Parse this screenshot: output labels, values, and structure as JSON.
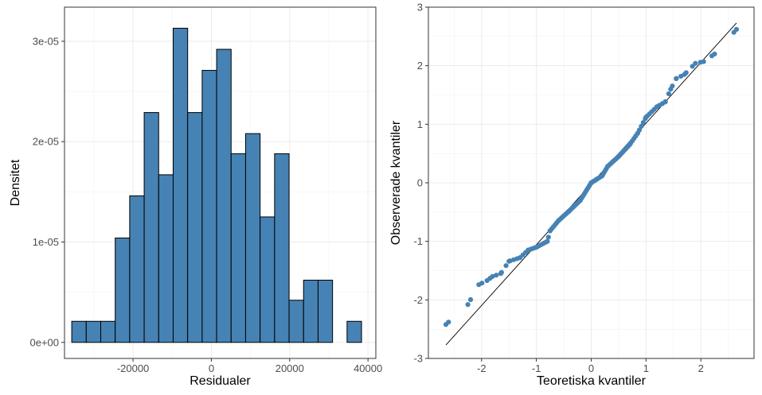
{
  "chart_data": [
    {
      "type": "bar",
      "subtype": "histogram",
      "xlabel": "Residualer",
      "ylabel": "Densitet",
      "xlim": [
        -37500,
        42000
      ],
      "ylim": [
        -1.6e-06,
        3.34e-05
      ],
      "x_ticks": [
        -20000,
        0,
        20000,
        40000
      ],
      "x_tick_labels": [
        "-20000",
        "0",
        "20000",
        "40000"
      ],
      "y_ticks": [
        0,
        1e-05,
        2e-05,
        3e-05
      ],
      "y_tick_labels": [
        "0e+00",
        "1e-05",
        "2e-05",
        "3e-05"
      ],
      "bin_width": 3700,
      "bins": [
        {
          "start": -35650,
          "end": -31950,
          "density": 2.1e-06
        },
        {
          "start": -31950,
          "end": -28250,
          "density": 2.1e-06
        },
        {
          "start": -28250,
          "end": -24550,
          "density": 2.1e-06
        },
        {
          "start": -24550,
          "end": -20850,
          "density": 1.04e-05
        },
        {
          "start": -20850,
          "end": -17150,
          "density": 1.46e-05
        },
        {
          "start": -17150,
          "end": -13450,
          "density": 2.29e-05
        },
        {
          "start": -13450,
          "end": -9750,
          "density": 1.67e-05
        },
        {
          "start": -9750,
          "end": -6050,
          "density": 3.13e-05
        },
        {
          "start": -6050,
          "end": -2350,
          "density": 2.29e-05
        },
        {
          "start": -2350,
          "end": 1350,
          "density": 2.71e-05
        },
        {
          "start": 1350,
          "end": 5050,
          "density": 2.92e-05
        },
        {
          "start": 5050,
          "end": 8750,
          "density": 1.88e-05
        },
        {
          "start": 8750,
          "end": 12450,
          "density": 2.08e-05
        },
        {
          "start": 12450,
          "end": 16150,
          "density": 1.25e-05
        },
        {
          "start": 16150,
          "end": 19850,
          "density": 1.88e-05
        },
        {
          "start": 19850,
          "end": 23550,
          "density": 4.2e-06
        },
        {
          "start": 23550,
          "end": 27250,
          "density": 6.2e-06
        },
        {
          "start": 27250,
          "end": 30950,
          "density": 6.2e-06
        },
        {
          "start": 30950,
          "end": 34650,
          "density": 0
        },
        {
          "start": 34650,
          "end": 38350,
          "density": 2.1e-06
        }
      ],
      "fill_color": "#4682B4",
      "edge_color": "#000000",
      "grid": true
    },
    {
      "type": "scatter",
      "subtype": "qq-plot",
      "xlabel": "Teoretiska kvantiler",
      "ylabel": "Observerade kvantiler",
      "xlim": [
        -2.97,
        2.97
      ],
      "ylim": [
        -3.0,
        3.0
      ],
      "x_ticks": [
        -2,
        -1,
        0,
        1,
        2
      ],
      "x_tick_labels": [
        "-2",
        "-1",
        "0",
        "1",
        "2"
      ],
      "y_ticks": [
        -3,
        -2,
        -1,
        0,
        1,
        2,
        3
      ],
      "y_tick_labels": [
        "-3",
        "-2",
        "-1",
        "0",
        "1",
        "2",
        "3"
      ],
      "reference_line": {
        "x": [
          -2.65,
          2.65
        ],
        "y": [
          -2.77,
          2.73
        ]
      },
      "quantile_knots": [
        [
          -2.65,
          -2.42
        ],
        [
          -2.25,
          -2.08
        ],
        [
          -2.05,
          -1.74
        ],
        [
          -1.9,
          -1.67
        ],
        [
          -1.8,
          -1.6
        ],
        [
          -1.65,
          -1.55
        ],
        [
          -1.5,
          -1.34
        ],
        [
          -1.3,
          -1.28
        ],
        [
          -1.15,
          -1.15
        ],
        [
          -1.0,
          -1.1
        ],
        [
          -0.8,
          -1.0
        ],
        [
          -0.75,
          -0.82
        ],
        [
          -0.6,
          -0.65
        ],
        [
          -0.4,
          -0.48
        ],
        [
          -0.2,
          -0.3
        ],
        [
          0.0,
          0.0
        ],
        [
          0.2,
          0.12
        ],
        [
          0.3,
          0.28
        ],
        [
          0.5,
          0.45
        ],
        [
          0.7,
          0.65
        ],
        [
          0.85,
          0.85
        ],
        [
          1.0,
          1.12
        ],
        [
          1.2,
          1.3
        ],
        [
          1.35,
          1.38
        ],
        [
          1.45,
          1.6
        ],
        [
          1.55,
          1.78
        ],
        [
          1.7,
          1.85
        ],
        [
          1.9,
          2.04
        ],
        [
          2.05,
          2.07
        ],
        [
          2.25,
          2.2
        ],
        [
          2.65,
          2.62
        ]
      ],
      "n_points": 108,
      "point_color": "#4682B4",
      "line_color": "#000000",
      "grid": true
    }
  ]
}
